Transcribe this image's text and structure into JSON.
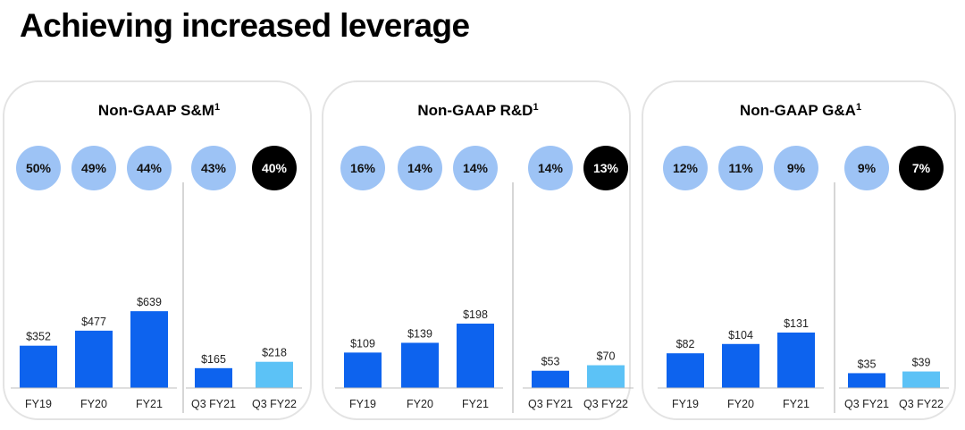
{
  "title": "Achieving increased leverage",
  "colors": {
    "bar_primary": "#0d63ee",
    "bar_highlight": "#5cc2f6",
    "pct_circle": "#9dc3f5",
    "pct_circle_highlight": "#000000",
    "pct_text_highlight": "#ffffff",
    "divider": "#c9c9c9",
    "axis": "#bdbdbd"
  },
  "chart_data": [
    {
      "type": "bar",
      "title": "Non-GAAP S&M",
      "title_footnote": "1",
      "categories": [
        "FY19",
        "FY20",
        "FY21",
        "Q3 FY21",
        "Q3 FY22"
      ],
      "values": [
        352,
        477,
        639,
        165,
        218
      ],
      "value_labels": [
        "$352",
        "$477",
        "$639",
        "$165",
        "$218"
      ],
      "percent_labels": [
        "50%",
        "49%",
        "44%",
        "43%",
        "40%"
      ],
      "groups": {
        "annual": [
          0,
          1,
          2
        ],
        "quarterly": [
          3,
          4
        ]
      },
      "highlight_index": 4,
      "unit": "$M"
    },
    {
      "type": "bar",
      "title": "Non-GAAP R&D",
      "title_footnote": "1",
      "categories": [
        "FY19",
        "FY20",
        "FY21",
        "Q3 FY21",
        "Q3 FY22"
      ],
      "values": [
        109,
        139,
        198,
        53,
        70
      ],
      "value_labels": [
        "$109",
        "$139",
        "$198",
        "$53",
        "$70"
      ],
      "percent_labels": [
        "16%",
        "14%",
        "14%",
        "14%",
        "13%"
      ],
      "groups": {
        "annual": [
          0,
          1,
          2
        ],
        "quarterly": [
          3,
          4
        ]
      },
      "highlight_index": 4,
      "unit": "$M"
    },
    {
      "type": "bar",
      "title": "Non-GAAP G&A",
      "title_footnote": "1",
      "categories": [
        "FY19",
        "FY20",
        "FY21",
        "Q3 FY21",
        "Q3 FY22"
      ],
      "values": [
        82,
        104,
        131,
        35,
        39
      ],
      "value_labels": [
        "$82",
        "$104",
        "$131",
        "$35",
        "$39"
      ],
      "percent_labels": [
        "12%",
        "11%",
        "9%",
        "9%",
        "7%"
      ],
      "groups": {
        "annual": [
          0,
          1,
          2
        ],
        "quarterly": [
          3,
          4
        ]
      },
      "highlight_index": 4,
      "unit": "$M"
    }
  ]
}
